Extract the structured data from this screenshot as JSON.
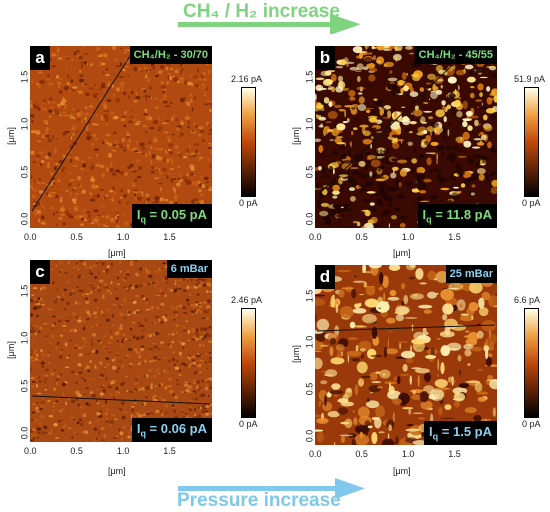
{
  "top_banner": {
    "text": "CH₄ / H₂ increase",
    "color": "#80d480"
  },
  "bottom_banner": {
    "text": "Pressure increase",
    "color": "#80c8ec"
  },
  "colorscale": {
    "low": "#000000",
    "mid": "#c0480a",
    "high": "#ffffe8"
  },
  "panels": {
    "a": {
      "letter": "a",
      "condition": "CH₄/H₂ - 30/70",
      "current": "I",
      "current_sub": "q",
      "current_val": " = 0.05 pA",
      "cbar_max": "2.16 pA",
      "cbar_min": "0 pA"
    },
    "b": {
      "letter": "b",
      "condition": "CH₄/H₂ - 45/55",
      "current": "I",
      "current_sub": "q",
      "current_val": " = 11.8 pA",
      "cbar_max": "51.9 pA",
      "cbar_min": "0 pA"
    },
    "c": {
      "letter": "c",
      "condition": "6 mBar",
      "current": "I",
      "current_sub": "q",
      "current_val": " = 0.06 pA",
      "cbar_max": "2.46 pA",
      "cbar_min": "0 pA"
    },
    "d": {
      "letter": "d",
      "condition": "25 mBar",
      "current": "I",
      "current_sub": "q",
      "current_val": " = 1.5 pA",
      "cbar_max": "6.6 pA",
      "cbar_min": "0 pA"
    }
  },
  "axes": {
    "unit_label": "[μm]",
    "yticks": [
      "0.0",
      "0.5",
      "1.0",
      "1.5"
    ],
    "xticks": [
      "0.0",
      "0.5",
      "1.0",
      "1.5"
    ]
  }
}
